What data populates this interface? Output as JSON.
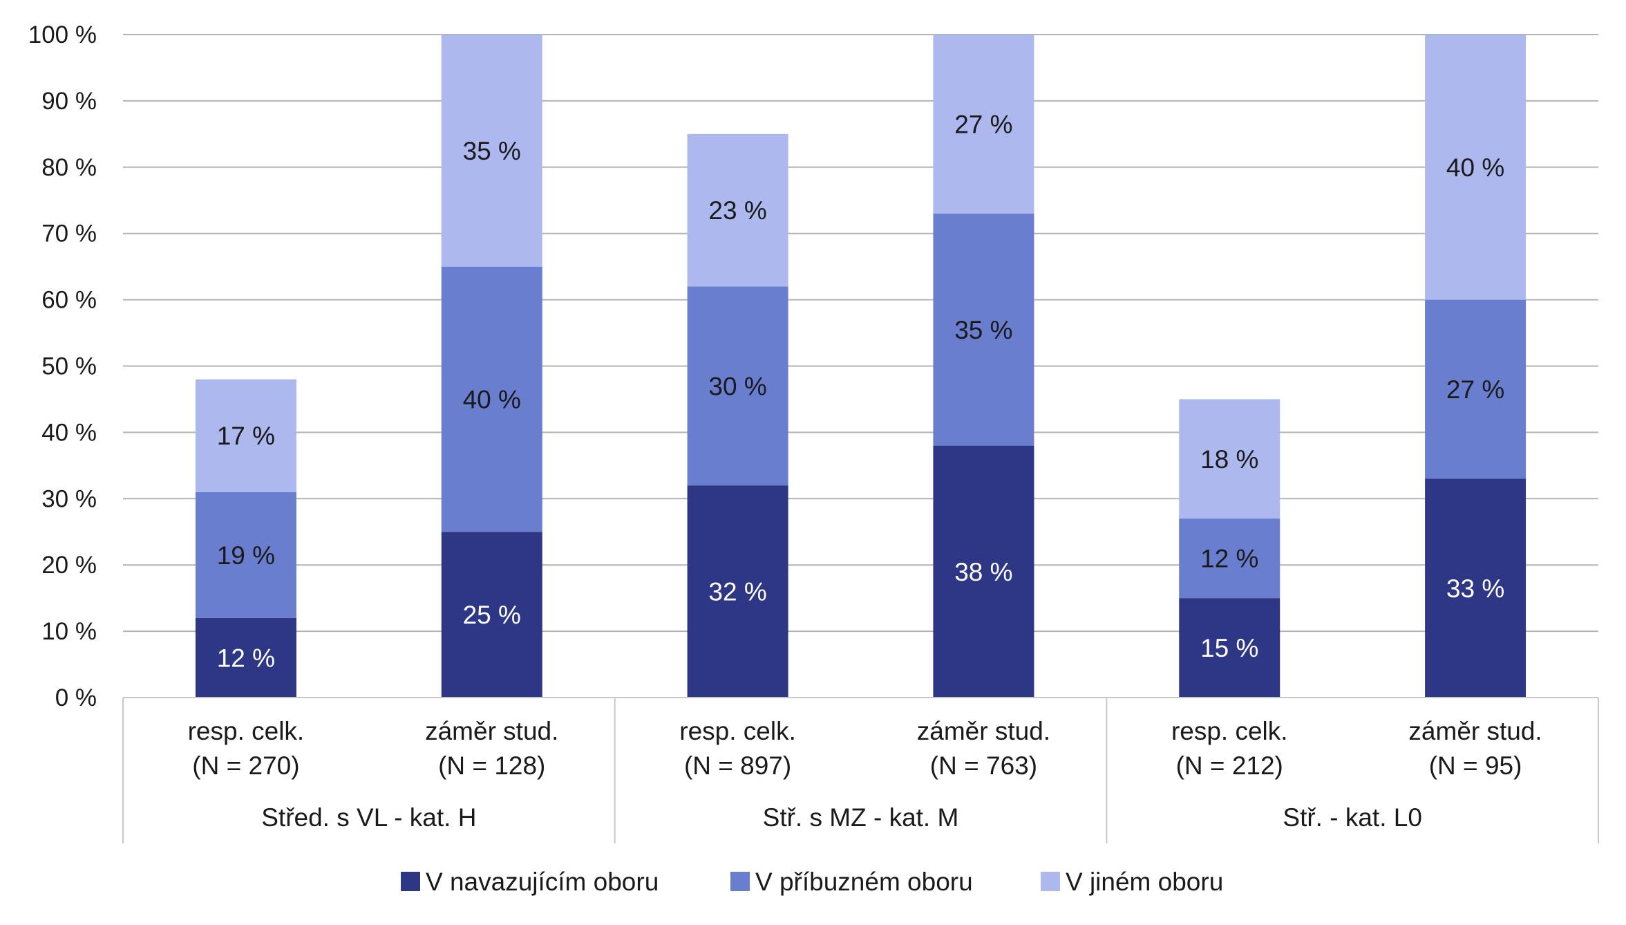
{
  "colors": {
    "background": "#ffffff",
    "gridline": "#b3b3b3",
    "axis": "#c8c8c8",
    "text": "#1a1a1a",
    "label_on_dark": "#ffffff",
    "label_on_light": "#1a1a1a"
  },
  "chart_data": {
    "type": "bar",
    "stacked": true,
    "title": "",
    "xlabel": "",
    "ylabel": "",
    "ylim": [
      0,
      100
    ],
    "yticks": [
      0,
      10,
      20,
      30,
      40,
      50,
      60,
      70,
      80,
      90,
      100
    ],
    "ytick_labels": [
      "0 %",
      "10 %",
      "20 %",
      "30 %",
      "40 %",
      "50 %",
      "60 %",
      "70 %",
      "80 %",
      "90 %",
      "100 %"
    ],
    "grid": true,
    "legend_position": "bottom",
    "categories": [
      [
        "resp. celk.",
        "(N = 270)"
      ],
      [
        "záměr stud.",
        "(N = 128)"
      ],
      [
        "resp. celk.",
        "(N = 897)"
      ],
      [
        "záměr stud.",
        "(N = 763)"
      ],
      [
        "resp. celk.",
        "(N = 212)"
      ],
      [
        "záměr stud.",
        "(N = 95)"
      ]
    ],
    "groups": [
      {
        "label": "Střed. s VL - kat. H",
        "span": 2
      },
      {
        "label": "Stř. s MZ - kat. M",
        "span": 2
      },
      {
        "label": "Stř. - kat. L0",
        "span": 2
      }
    ],
    "series": [
      {
        "name": "V navazujícím oboru",
        "color": "#2e3785",
        "label_color": "#ffffff",
        "values": [
          12,
          25,
          32,
          38,
          15,
          33
        ],
        "labels": [
          "12 %",
          "25 %",
          "32 %",
          "38 %",
          "15 %",
          "33 %"
        ]
      },
      {
        "name": "V příbuzném oboru",
        "color": "#6a7ed0",
        "label_color": "#1a1a1a",
        "values": [
          19,
          40,
          30,
          35,
          12,
          27
        ],
        "labels": [
          "19 %",
          "40 %",
          "30 %",
          "35 %",
          "12 %",
          "27 %"
        ]
      },
      {
        "name": "V jiném oboru",
        "color": "#adb8ee",
        "label_color": "#1a1a1a",
        "values": [
          17,
          35,
          23,
          27,
          18,
          40
        ],
        "labels": [
          "17 %",
          "35 %",
          "23 %",
          "27 %",
          "18 %",
          "40 %"
        ]
      }
    ]
  }
}
